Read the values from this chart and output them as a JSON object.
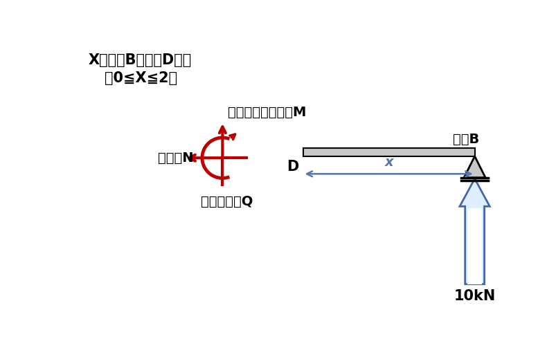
{
  "title_line1": "Xが支点Bから点Dまで",
  "title_line2": "（0≦X≦2）",
  "label_moment": "曲げモーメント：M",
  "label_axial": "軸力：N",
  "label_shear": "せん断力：Q",
  "label_support": "支点B",
  "label_D": "D",
  "label_X": "x",
  "label_force": "10kN",
  "red_color": "#bb0000",
  "blue_color": "#5577aa",
  "light_blue_fill": "#ddeeff",
  "blue_edge": "#4466aa",
  "beam_color": "#c8c8c8",
  "bg_color": "#ffffff",
  "title_fontsize": 15,
  "label_fontsize": 14,
  "force_fontsize": 15
}
